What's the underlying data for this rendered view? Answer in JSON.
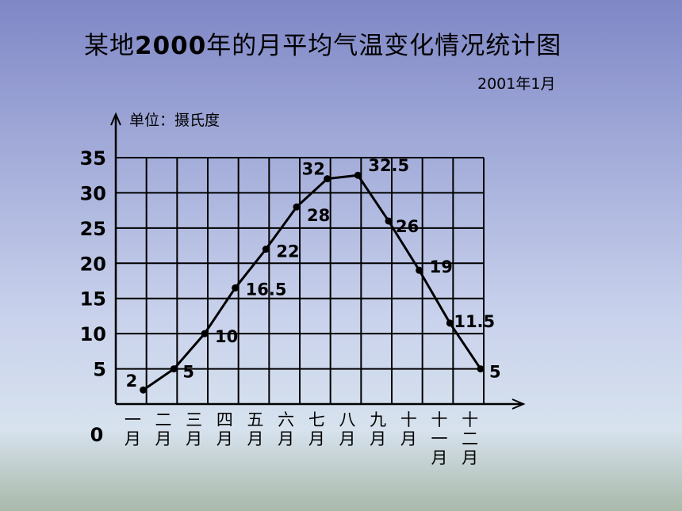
{
  "chart_data": {
    "type": "line",
    "title": "某地2000年的月平均气温变化情况统计图",
    "title_parts": [
      "某地",
      "2000",
      "年的月平均气温变化情况统计图"
    ],
    "date": "2001年1月",
    "ylabel": "单位：摄氏度",
    "origin_label": "0",
    "yticks": [
      "5",
      "10",
      "15",
      "20",
      "25",
      "30",
      "35"
    ],
    "ytick_values": [
      5,
      10,
      15,
      20,
      25,
      30,
      35
    ],
    "ylim": [
      0,
      35
    ],
    "categories": [
      [
        "一",
        "月"
      ],
      [
        "二",
        "月"
      ],
      [
        "三",
        "月"
      ],
      [
        "四",
        "月"
      ],
      [
        "五",
        "月"
      ],
      [
        "六",
        "月"
      ],
      [
        "七",
        "月"
      ],
      [
        "八",
        "月"
      ],
      [
        "九",
        "月"
      ],
      [
        "十",
        "月"
      ],
      [
        "十",
        "一",
        "月"
      ],
      [
        "十",
        "二",
        "月"
      ]
    ],
    "values": [
      2,
      5,
      10,
      16.5,
      22,
      28,
      32,
      32.5,
      26,
      19,
      11.5,
      5
    ],
    "data_labels": [
      "2",
      "5",
      "10",
      "16.5",
      "22",
      "28",
      "32",
      "32.5",
      "26",
      "19",
      "11.5",
      "5"
    ],
    "grid": true
  }
}
